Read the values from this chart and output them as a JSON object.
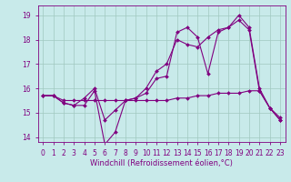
{
  "xlabel": "Windchill (Refroidissement éolien,°C)",
  "bg_color": "#c8eaea",
  "grid_color": "#a0c8c0",
  "line_color": "#800080",
  "x": [
    0,
    1,
    2,
    3,
    4,
    5,
    6,
    7,
    8,
    9,
    10,
    11,
    12,
    13,
    14,
    15,
    16,
    17,
    18,
    19,
    20,
    21,
    22,
    23
  ],
  "line1": [
    15.7,
    15.7,
    15.4,
    15.3,
    15.3,
    15.9,
    13.7,
    14.2,
    15.5,
    15.6,
    15.8,
    16.4,
    16.5,
    18.3,
    18.5,
    18.1,
    16.6,
    18.3,
    18.5,
    18.8,
    18.4,
    15.9,
    15.2,
    14.7
  ],
  "line2": [
    15.7,
    15.7,
    15.4,
    15.3,
    15.6,
    16.0,
    14.7,
    15.1,
    15.5,
    15.6,
    16.0,
    16.7,
    17.0,
    18.0,
    17.8,
    17.7,
    18.1,
    18.4,
    18.5,
    19.0,
    18.5,
    16.0,
    15.2,
    14.7
  ],
  "line3": [
    15.7,
    15.7,
    15.5,
    15.5,
    15.5,
    15.5,
    15.5,
    15.5,
    15.5,
    15.5,
    15.5,
    15.5,
    15.5,
    15.6,
    15.6,
    15.7,
    15.7,
    15.8,
    15.8,
    15.8,
    15.9,
    15.9,
    15.2,
    14.8
  ],
  "ylim": [
    13.8,
    19.4
  ],
  "yticks": [
    14,
    15,
    16,
    17,
    18,
    19
  ],
  "marker": "D",
  "marker_size": 2,
  "line_width": 0.8,
  "tick_fontsize": 5.5,
  "xlabel_fontsize": 6.0
}
